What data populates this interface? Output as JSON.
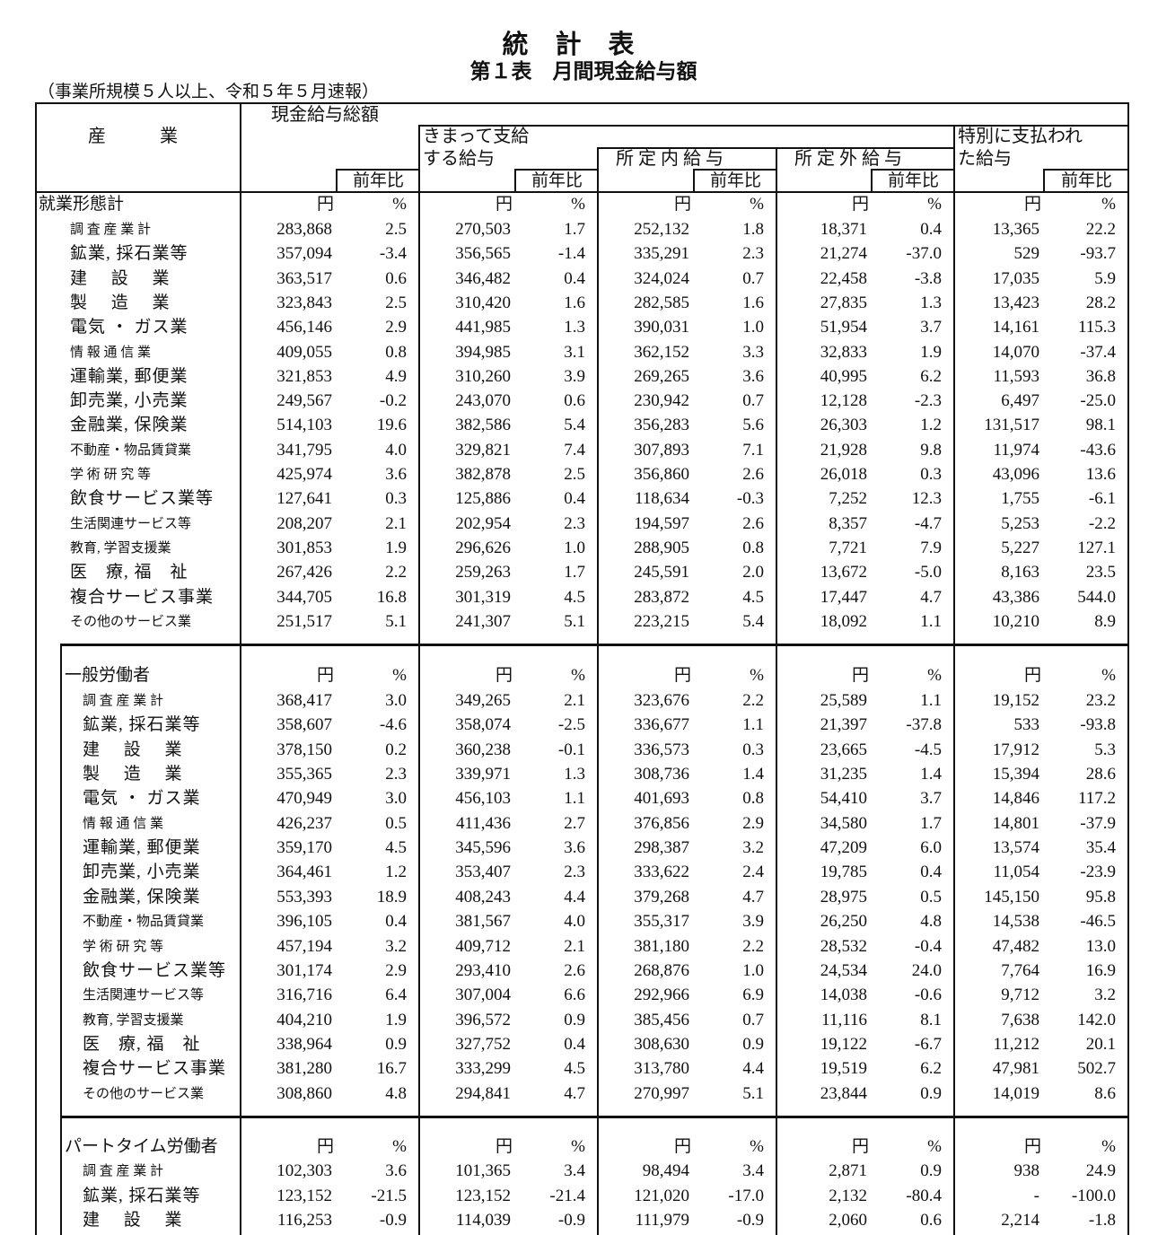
{
  "title": "統計表",
  "subtitle": "第１表　月間現金給与額",
  "scope": "（事業所規模５人以上、令和５年５月速報）",
  "header": {
    "industry": "産　　　業",
    "total": "現金給与総額",
    "regular": "きまって支給\nする給与",
    "scheduled": "所 定 内 給 与",
    "overtime": "所 定 外 給 与",
    "special": "特別に支払われ\nた給与",
    "yoy": "前年比",
    "yen": "円",
    "pct": "%"
  },
  "sections": [
    {
      "title": "就業形態計",
      "rows": [
        [
          "調 査 産 業 計",
          "283,868",
          "2.5",
          "270,503",
          "1.7",
          "252,132",
          "1.8",
          "18,371",
          "0.4",
          "13,365",
          "22.2"
        ],
        [
          "鉱業, 採石業等",
          "357,094",
          "-3.4",
          "356,565",
          "-1.4",
          "335,291",
          "2.3",
          "21,274",
          "-37.0",
          "529",
          "-93.7"
        ],
        [
          "建　 設　 業",
          "363,517",
          "0.6",
          "346,482",
          "0.4",
          "324,024",
          "0.7",
          "22,458",
          "-3.8",
          "17,035",
          "5.9"
        ],
        [
          "製　 造　 業",
          "323,843",
          "2.5",
          "310,420",
          "1.6",
          "282,585",
          "1.6",
          "27,835",
          "1.3",
          "13,423",
          "28.2"
        ],
        [
          "電気 ・ ガス業",
          "456,146",
          "2.9",
          "441,985",
          "1.3",
          "390,031",
          "1.0",
          "51,954",
          "3.7",
          "14,161",
          "115.3"
        ],
        [
          "情 報 通 信 業",
          "409,055",
          "0.8",
          "394,985",
          "3.1",
          "362,152",
          "3.3",
          "32,833",
          "1.9",
          "14,070",
          "-37.4"
        ],
        [
          "運輸業, 郵便業",
          "321,853",
          "4.9",
          "310,260",
          "3.9",
          "269,265",
          "3.6",
          "40,995",
          "6.2",
          "11,593",
          "36.8"
        ],
        [
          "卸売業, 小売業",
          "249,567",
          "-0.2",
          "243,070",
          "0.6",
          "230,942",
          "0.7",
          "12,128",
          "-2.3",
          "6,497",
          "-25.0"
        ],
        [
          "金融業, 保険業",
          "514,103",
          "19.6",
          "382,586",
          "5.4",
          "356,283",
          "5.6",
          "26,303",
          "1.2",
          "131,517",
          "98.1"
        ],
        [
          "不動産・物品賃貸業",
          "341,795",
          "4.0",
          "329,821",
          "7.4",
          "307,893",
          "7.1",
          "21,928",
          "9.8",
          "11,974",
          "-43.6"
        ],
        [
          "学 術 研 究 等",
          "425,974",
          "3.6",
          "382,878",
          "2.5",
          "356,860",
          "2.6",
          "26,018",
          "0.3",
          "43,096",
          "13.6"
        ],
        [
          "飲食サービス業等",
          "127,641",
          "0.3",
          "125,886",
          "0.4",
          "118,634",
          "-0.3",
          "7,252",
          "12.3",
          "1,755",
          "-6.1"
        ],
        [
          "生活関連サービス等",
          "208,207",
          "2.1",
          "202,954",
          "2.3",
          "194,597",
          "2.6",
          "8,357",
          "-4.7",
          "5,253",
          "-2.2"
        ],
        [
          "教育, 学習支援業",
          "301,853",
          "1.9",
          "296,626",
          "1.0",
          "288,905",
          "0.8",
          "7,721",
          "7.9",
          "5,227",
          "127.1"
        ],
        [
          "医　療, 福　祉",
          "267,426",
          "2.2",
          "259,263",
          "1.7",
          "245,591",
          "2.0",
          "13,672",
          "-5.0",
          "8,163",
          "23.5"
        ],
        [
          "複合サービス事業",
          "344,705",
          "16.8",
          "301,319",
          "4.5",
          "283,872",
          "4.5",
          "17,447",
          "4.7",
          "43,386",
          "544.0"
        ],
        [
          "その他のサービス業",
          "251,517",
          "5.1",
          "241,307",
          "5.1",
          "223,215",
          "5.4",
          "18,092",
          "1.1",
          "10,210",
          "8.9"
        ]
      ]
    },
    {
      "title": "一般労働者",
      "rows": [
        [
          "調 査 産 業 計",
          "368,417",
          "3.0",
          "349,265",
          "2.1",
          "323,676",
          "2.2",
          "25,589",
          "1.1",
          "19,152",
          "23.2"
        ],
        [
          "鉱業, 採石業等",
          "358,607",
          "-4.6",
          "358,074",
          "-2.5",
          "336,677",
          "1.1",
          "21,397",
          "-37.8",
          "533",
          "-93.8"
        ],
        [
          "建　 設　 業",
          "378,150",
          "0.2",
          "360,238",
          "-0.1",
          "336,573",
          "0.3",
          "23,665",
          "-4.5",
          "17,912",
          "5.3"
        ],
        [
          "製　 造　 業",
          "355,365",
          "2.3",
          "339,971",
          "1.3",
          "308,736",
          "1.4",
          "31,235",
          "1.4",
          "15,394",
          "28.6"
        ],
        [
          "電気 ・ ガス業",
          "470,949",
          "3.0",
          "456,103",
          "1.1",
          "401,693",
          "0.8",
          "54,410",
          "3.7",
          "14,846",
          "117.2"
        ],
        [
          "情 報 通 信 業",
          "426,237",
          "0.5",
          "411,436",
          "2.7",
          "376,856",
          "2.9",
          "34,580",
          "1.7",
          "14,801",
          "-37.9"
        ],
        [
          "運輸業, 郵便業",
          "359,170",
          "4.5",
          "345,596",
          "3.6",
          "298,387",
          "3.2",
          "47,209",
          "6.0",
          "13,574",
          "35.4"
        ],
        [
          "卸売業, 小売業",
          "364,461",
          "1.2",
          "353,407",
          "2.3",
          "333,622",
          "2.4",
          "19,785",
          "0.4",
          "11,054",
          "-23.9"
        ],
        [
          "金融業, 保険業",
          "553,393",
          "18.9",
          "408,243",
          "4.4",
          "379,268",
          "4.7",
          "28,975",
          "0.5",
          "145,150",
          "95.8"
        ],
        [
          "不動産・物品賃貸業",
          "396,105",
          "0.4",
          "381,567",
          "4.0",
          "355,317",
          "3.9",
          "26,250",
          "4.8",
          "14,538",
          "-46.5"
        ],
        [
          "学 術 研 究 等",
          "457,194",
          "3.2",
          "409,712",
          "2.1",
          "381,180",
          "2.2",
          "28,532",
          "-0.4",
          "47,482",
          "13.0"
        ],
        [
          "飲食サービス業等",
          "301,174",
          "2.9",
          "293,410",
          "2.6",
          "268,876",
          "1.0",
          "24,534",
          "24.0",
          "7,764",
          "16.9"
        ],
        [
          "生活関連サービス等",
          "316,716",
          "6.4",
          "307,004",
          "6.6",
          "292,966",
          "6.9",
          "14,038",
          "-0.6",
          "9,712",
          "3.2"
        ],
        [
          "教育, 学習支援業",
          "404,210",
          "1.9",
          "396,572",
          "0.9",
          "385,456",
          "0.7",
          "11,116",
          "8.1",
          "7,638",
          "142.0"
        ],
        [
          "医　療, 福　祉",
          "338,964",
          "0.9",
          "327,752",
          "0.4",
          "308,630",
          "0.9",
          "19,122",
          "-6.7",
          "11,212",
          "20.1"
        ],
        [
          "複合サービス事業",
          "381,280",
          "16.7",
          "333,299",
          "4.5",
          "313,780",
          "4.4",
          "19,519",
          "6.2",
          "47,981",
          "502.7"
        ],
        [
          "その他のサービス業",
          "308,860",
          "4.8",
          "294,841",
          "4.7",
          "270,997",
          "5.1",
          "23,844",
          "0.9",
          "14,019",
          "8.6"
        ]
      ]
    },
    {
      "title": "パートタイム労働者",
      "rows": [
        [
          "調 査 産 業 計",
          "102,303",
          "3.6",
          "101,365",
          "3.4",
          "98,494",
          "3.4",
          "2,871",
          "0.9",
          "938",
          "24.9"
        ],
        [
          "鉱業, 採石業等",
          "123,152",
          "-21.5",
          "123,152",
          "-21.4",
          "121,020",
          "-17.0",
          "2,132",
          "-80.4",
          "-",
          "-100.0"
        ],
        [
          "建　 設　 業",
          "116,253",
          "-0.9",
          "114,039",
          "-0.9",
          "111,979",
          "-0.9",
          "2,060",
          "0.6",
          "2,214",
          "-1.8"
        ]
      ]
    }
  ]
}
